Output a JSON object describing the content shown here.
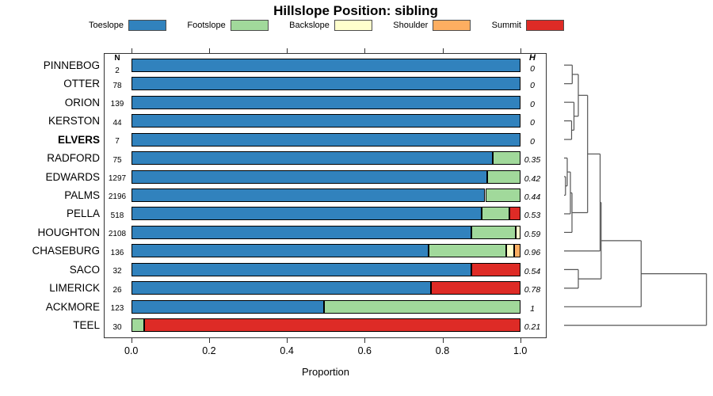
{
  "title": "Hillslope Position: sibling",
  "legend": {
    "items": [
      {
        "label": "Toeslope",
        "color": "#3182BD"
      },
      {
        "label": "Footslope",
        "color": "#A1D99B"
      },
      {
        "label": "Backslope",
        "color": "#FFFFCC"
      },
      {
        "label": "Shoulder",
        "color": "#FDAE61"
      },
      {
        "label": "Summit",
        "color": "#DE2B26"
      }
    ]
  },
  "chart_data": {
    "type": "bar",
    "orientation": "horizontal-stacked",
    "title": "Hillslope Position: sibling",
    "xlabel": "Proportion",
    "xlim": [
      0,
      1
    ],
    "x_tick_values": [
      0,
      0.2,
      0.4,
      0.6,
      0.8,
      1.0
    ],
    "x_ticks": [
      "0.0",
      "0.2",
      "0.4",
      "0.6",
      "0.8",
      "1.0"
    ],
    "n_column_header": "N",
    "h_column_header": "H",
    "categories": [
      "Toeslope",
      "Footslope",
      "Backslope",
      "Shoulder",
      "Summit"
    ],
    "category_colors": {
      "Toeslope": "#3182BD",
      "Footslope": "#A1D99B",
      "Backslope": "#FFFFCC",
      "Shoulder": "#FDAE61",
      "Summit": "#DE2B26"
    },
    "rows": [
      {
        "label": "PINNEBOG",
        "n": "2",
        "h": "0",
        "bold": false,
        "segments": [
          {
            "category": "Toeslope",
            "value": 1
          }
        ]
      },
      {
        "label": "OTTER",
        "n": "78",
        "h": "0",
        "bold": false,
        "segments": [
          {
            "category": "Toeslope",
            "value": 1
          }
        ]
      },
      {
        "label": "ORION",
        "n": "139",
        "h": "0",
        "bold": false,
        "segments": [
          {
            "category": "Toeslope",
            "value": 1
          }
        ]
      },
      {
        "label": "KERSTON",
        "n": "44",
        "h": "0",
        "bold": false,
        "segments": [
          {
            "category": "Toeslope",
            "value": 1
          }
        ]
      },
      {
        "label": "ELVERS",
        "n": "7",
        "h": "0",
        "bold": true,
        "segments": [
          {
            "category": "Toeslope",
            "value": 1
          }
        ]
      },
      {
        "label": "RADFORD",
        "n": "75",
        "h": "0.35",
        "bold": false,
        "segments": [
          {
            "category": "Toeslope",
            "value": 0.93
          },
          {
            "category": "Footslope",
            "value": 0.07
          }
        ]
      },
      {
        "label": "EDWARDS",
        "n": "1297",
        "h": "0.42",
        "bold": false,
        "segments": [
          {
            "category": "Toeslope",
            "value": 0.915
          },
          {
            "category": "Footslope",
            "value": 0.085
          }
        ]
      },
      {
        "label": "PALMS",
        "n": "2196",
        "h": "0.44",
        "bold": false,
        "segments": [
          {
            "category": "Toeslope",
            "value": 0.91
          },
          {
            "category": "Footslope",
            "value": 0.09
          }
        ]
      },
      {
        "label": "PELLA",
        "n": "518",
        "h": "0.53",
        "bold": false,
        "segments": [
          {
            "category": "Toeslope",
            "value": 0.9
          },
          {
            "category": "Footslope",
            "value": 0.073
          },
          {
            "category": "Summit",
            "value": 0.027
          }
        ]
      },
      {
        "label": "HOUGHTON",
        "n": "2108",
        "h": "0.59",
        "bold": false,
        "segments": [
          {
            "category": "Toeslope",
            "value": 0.875
          },
          {
            "category": "Footslope",
            "value": 0.113
          },
          {
            "category": "Backslope",
            "value": 0.012
          }
        ]
      },
      {
        "label": "CHASEBURG",
        "n": "136",
        "h": "0.96",
        "bold": false,
        "segments": [
          {
            "category": "Toeslope",
            "value": 0.765
          },
          {
            "category": "Footslope",
            "value": 0.198
          },
          {
            "category": "Backslope",
            "value": 0.022
          },
          {
            "category": "Shoulder",
            "value": 0.015
          }
        ]
      },
      {
        "label": "SACO",
        "n": "32",
        "h": "0.54",
        "bold": false,
        "segments": [
          {
            "category": "Toeslope",
            "value": 0.875
          },
          {
            "category": "Summit",
            "value": 0.125
          }
        ]
      },
      {
        "label": "LIMERICK",
        "n": "26",
        "h": "0.78",
        "bold": false,
        "segments": [
          {
            "category": "Toeslope",
            "value": 0.77
          },
          {
            "category": "Summit",
            "value": 0.23
          }
        ]
      },
      {
        "label": "ACKMORE",
        "n": "123",
        "h": "1",
        "bold": false,
        "segments": [
          {
            "category": "Toeslope",
            "value": 0.495
          },
          {
            "category": "Footslope",
            "value": 0.505
          }
        ]
      },
      {
        "label": "TEEL",
        "n": "30",
        "h": "0.21",
        "bold": false,
        "segments": [
          {
            "category": "Footslope",
            "value": 0.033
          },
          {
            "category": "Summit",
            "value": 0.967
          }
        ]
      }
    ],
    "dendrogram": {
      "x": 891.7,
      "c": [
        {
          "x": 809.3,
          "c": [
            {
              "x": 758.8,
              "c": [
                {
                  "x": 757.5,
                  "c": [
                    {
                      "x": 741.7,
                      "c": [
                        {
                          "x": 730,
                          "c": [
                            {
                              "x": 722.3,
                              "c": [
                                0,
                                1
                              ]
                            },
                            {
                              "x": 724.5,
                              "c": [
                                2,
                                {
                                  "x": 721.5,
                                  "c": [
                                    3,
                                    4
                                  ]
                                }
                              ]
                            }
                          ]
                        },
                        {
                          "x": 722,
                          "c": [
                            {
                              "x": 720,
                              "c": [
                                {
                                  "x": 716,
                                  "c": [
                                    5,
                                    {
                                      "x": 713.8,
                                      "c": [
                                        6,
                                        7
                                      ]
                                    }
                                  ]
                                },
                                8
                              ]
                            },
                            9
                          ]
                        }
                      ]
                    },
                    10
                  ]
                },
                {
                  "x": 730,
                  "c": [
                    11,
                    12
                  ]
                }
              ]
            },
            13
          ]
        },
        14
      ]
    }
  }
}
